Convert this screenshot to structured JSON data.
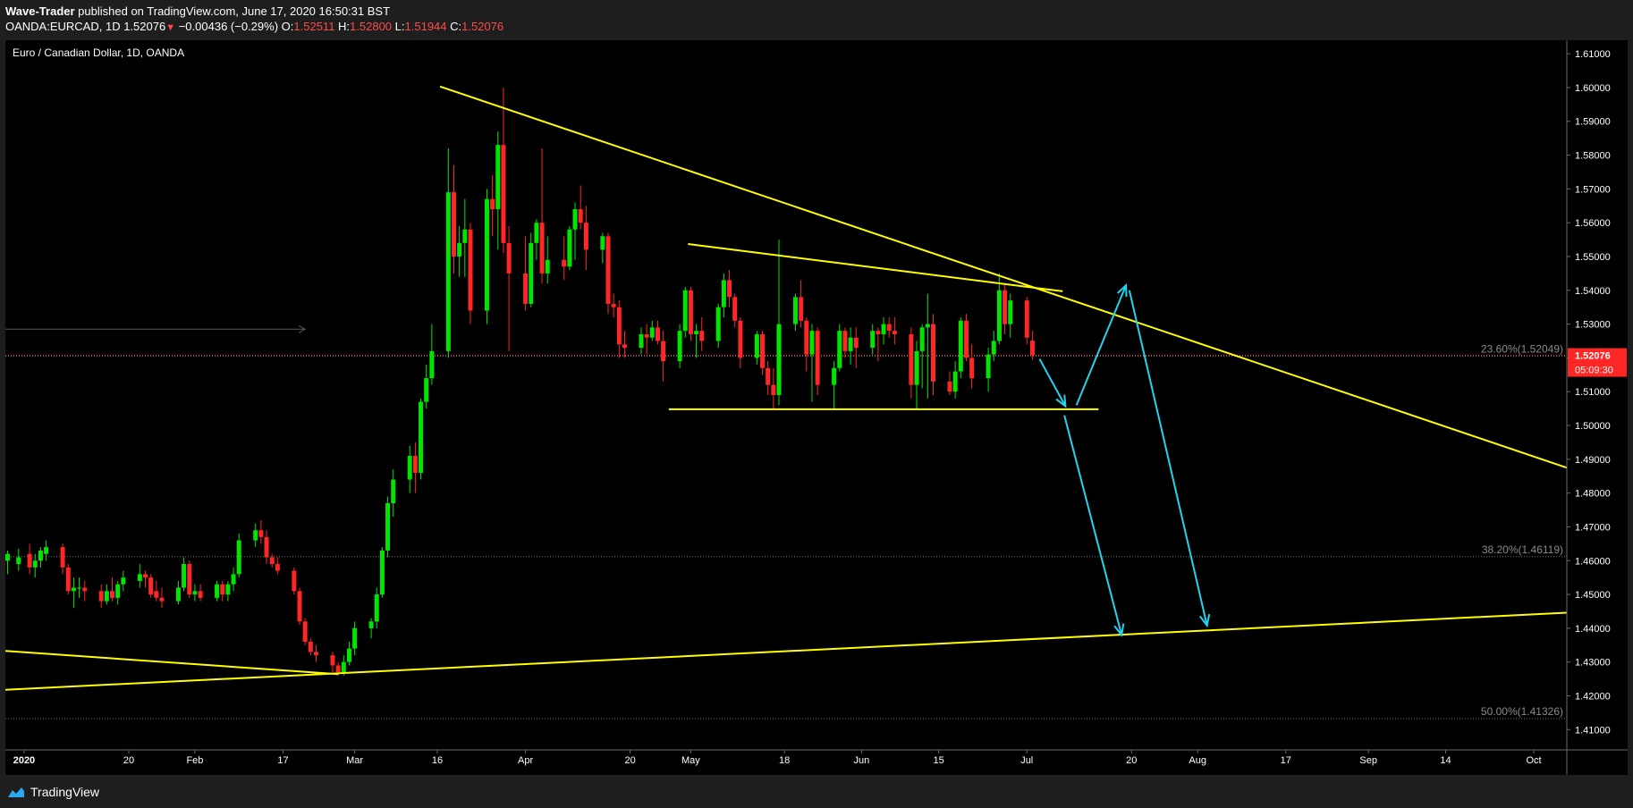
{
  "header": {
    "author": "Wave-Trader",
    "published": " published on TradingView.com, June 17, 2020 16:50:31 BST",
    "symbol": "OANDA:EURCAD, 1D",
    "last": "1.52076",
    "change": "−0.00436 (−0.29%)",
    "o_label": "O:",
    "o_value": "1.52511",
    "h_label": "H:",
    "h_value": "1.52800",
    "l_label": "L:",
    "l_value": "1.51944",
    "c_label": "C:",
    "c_value": "1.52076"
  },
  "chart_title": "Euro / Canadian Dollar, 1D, OANDA",
  "footer": {
    "brand": "TradingView"
  },
  "colors": {
    "up": "#00e600",
    "down": "#ff2626",
    "trend": "#ffff00",
    "projection": "#22d3ee",
    "price_tag": "#ff2626",
    "background": "#000000"
  },
  "chart_data": {
    "type": "candlestick",
    "title": "Euro / Canadian Dollar, 1D, OANDA",
    "y_range": [
      1.404,
      1.614
    ],
    "y_ticks": [
      "1.61000",
      "1.60000",
      "1.59000",
      "1.58000",
      "1.57000",
      "1.56000",
      "1.55000",
      "1.54000",
      "1.53000",
      "1.52000",
      "1.51000",
      "1.50000",
      "1.49000",
      "1.48000",
      "1.47000",
      "1.46000",
      "1.45000",
      "1.44000",
      "1.43000",
      "1.42000",
      "1.41000"
    ],
    "x_ticks": [
      {
        "d": 0,
        "label": "2020"
      },
      {
        "d": 19,
        "label": "20"
      },
      {
        "d": 31,
        "label": "Feb"
      },
      {
        "d": 47,
        "label": "17"
      },
      {
        "d": 60,
        "label": "Mar"
      },
      {
        "d": 75,
        "label": "16"
      },
      {
        "d": 91,
        "label": "Apr"
      },
      {
        "d": 110,
        "label": "20"
      },
      {
        "d": 121,
        "label": "May"
      },
      {
        "d": 138,
        "label": "18"
      },
      {
        "d": 152,
        "label": "Jun"
      },
      {
        "d": 166,
        "label": "15"
      },
      {
        "d": 182,
        "label": "Jul"
      },
      {
        "d": 201,
        "label": "20"
      },
      {
        "d": 213,
        "label": "Aug"
      },
      {
        "d": 229,
        "label": "17"
      },
      {
        "d": 244,
        "label": "Sep"
      },
      {
        "d": 258,
        "label": "14"
      },
      {
        "d": 274,
        "label": "Oct"
      }
    ],
    "x_range": [
      -3.4,
      280
    ],
    "last_price": {
      "value": 1.52076,
      "label": "1.52076",
      "countdown": "05:09:30"
    },
    "fib_levels": [
      {
        "value": 1.52049,
        "label": "23.60%(1.52049)"
      },
      {
        "value": 1.46119,
        "label": "38.20%(1.46119)"
      },
      {
        "value": 1.41326,
        "label": "50.00%(1.41326)"
      }
    ],
    "candles": [
      {
        "d": -3,
        "o": 1.46,
        "h": 1.463,
        "l": 1.456,
        "c": 1.462
      },
      {
        "d": -1,
        "o": 1.459,
        "h": 1.4635,
        "l": 1.457,
        "c": 1.461
      },
      {
        "d": 1,
        "o": 1.462,
        "h": 1.465,
        "l": 1.456,
        "c": 1.458
      },
      {
        "d": 2,
        "o": 1.458,
        "h": 1.462,
        "l": 1.455,
        "c": 1.46
      },
      {
        "d": 3,
        "o": 1.46,
        "h": 1.464,
        "l": 1.458,
        "c": 1.463
      },
      {
        "d": 4,
        "o": 1.462,
        "h": 1.466,
        "l": 1.46,
        "c": 1.464
      },
      {
        "d": 7,
        "o": 1.464,
        "h": 1.465,
        "l": 1.456,
        "c": 1.458
      },
      {
        "d": 8,
        "o": 1.458,
        "h": 1.459,
        "l": 1.45,
        "c": 1.451
      },
      {
        "d": 9,
        "o": 1.451,
        "h": 1.455,
        "l": 1.446,
        "c": 1.452
      },
      {
        "d": 10,
        "o": 1.452,
        "h": 1.455,
        "l": 1.449,
        "c": 1.452
      },
      {
        "d": 11,
        "o": 1.452,
        "h": 1.454,
        "l": 1.448,
        "c": 1.451
      },
      {
        "d": 14,
        "o": 1.451,
        "h": 1.453,
        "l": 1.446,
        "c": 1.448
      },
      {
        "d": 15,
        "o": 1.448,
        "h": 1.453,
        "l": 1.447,
        "c": 1.451
      },
      {
        "d": 16,
        "o": 1.451,
        "h": 1.455,
        "l": 1.448,
        "c": 1.449
      },
      {
        "d": 17,
        "o": 1.449,
        "h": 1.454,
        "l": 1.447,
        "c": 1.453
      },
      {
        "d": 18,
        "o": 1.453,
        "h": 1.457,
        "l": 1.451,
        "c": 1.455
      },
      {
        "d": 21,
        "o": 1.454,
        "h": 1.459,
        "l": 1.452,
        "c": 1.456
      },
      {
        "d": 22,
        "o": 1.456,
        "h": 1.457,
        "l": 1.452,
        "c": 1.455
      },
      {
        "d": 23,
        "o": 1.455,
        "h": 1.456,
        "l": 1.449,
        "c": 1.45
      },
      {
        "d": 24,
        "o": 1.451,
        "h": 1.454,
        "l": 1.448,
        "c": 1.449
      },
      {
        "d": 25,
        "o": 1.449,
        "h": 1.452,
        "l": 1.446,
        "c": 1.448
      },
      {
        "d": 28,
        "o": 1.448,
        "h": 1.454,
        "l": 1.447,
        "c": 1.452
      },
      {
        "d": 29,
        "o": 1.452,
        "h": 1.461,
        "l": 1.451,
        "c": 1.459
      },
      {
        "d": 30,
        "o": 1.459,
        "h": 1.46,
        "l": 1.449,
        "c": 1.45
      },
      {
        "d": 31,
        "o": 1.45,
        "h": 1.453,
        "l": 1.448,
        "c": 1.451
      },
      {
        "d": 32,
        "o": 1.451,
        "h": 1.453,
        "l": 1.448,
        "c": 1.449
      },
      {
        "d": 35,
        "o": 1.449,
        "h": 1.454,
        "l": 1.448,
        "c": 1.453
      },
      {
        "d": 36,
        "o": 1.453,
        "h": 1.454,
        "l": 1.448,
        "c": 1.45
      },
      {
        "d": 37,
        "o": 1.45,
        "h": 1.454,
        "l": 1.448,
        "c": 1.453
      },
      {
        "d": 38,
        "o": 1.453,
        "h": 1.458,
        "l": 1.451,
        "c": 1.456
      },
      {
        "d": 39,
        "o": 1.456,
        "h": 1.468,
        "l": 1.455,
        "c": 1.466
      },
      {
        "d": 42,
        "o": 1.466,
        "h": 1.471,
        "l": 1.464,
        "c": 1.469
      },
      {
        "d": 43,
        "o": 1.469,
        "h": 1.472,
        "l": 1.465,
        "c": 1.467
      },
      {
        "d": 44,
        "o": 1.467,
        "h": 1.469,
        "l": 1.459,
        "c": 1.461
      },
      {
        "d": 45,
        "o": 1.461,
        "h": 1.462,
        "l": 1.458,
        "c": 1.459
      },
      {
        "d": 46,
        "o": 1.459,
        "h": 1.461,
        "l": 1.456,
        "c": 1.457
      },
      {
        "d": 49,
        "o": 1.457,
        "h": 1.458,
        "l": 1.45,
        "c": 1.451
      },
      {
        "d": 50,
        "o": 1.451,
        "h": 1.452,
        "l": 1.441,
        "c": 1.442
      },
      {
        "d": 51,
        "o": 1.442,
        "h": 1.443,
        "l": 1.435,
        "c": 1.436
      },
      {
        "d": 52,
        "o": 1.436,
        "h": 1.437,
        "l": 1.432,
        "c": 1.433
      },
      {
        "d": 53,
        "o": 1.433,
        "h": 1.435,
        "l": 1.43,
        "c": 1.432
      },
      {
        "d": 56,
        "o": 1.432,
        "h": 1.433,
        "l": 1.427,
        "c": 1.429
      },
      {
        "d": 57,
        "o": 1.429,
        "h": 1.43,
        "l": 1.426,
        "c": 1.427
      },
      {
        "d": 58,
        "o": 1.427,
        "h": 1.432,
        "l": 1.426,
        "c": 1.43
      },
      {
        "d": 59,
        "o": 1.43,
        "h": 1.436,
        "l": 1.429,
        "c": 1.434
      },
      {
        "d": 60,
        "o": 1.434,
        "h": 1.442,
        "l": 1.432,
        "c": 1.44
      },
      {
        "d": 63,
        "o": 1.44,
        "h": 1.443,
        "l": 1.437,
        "c": 1.442
      },
      {
        "d": 64,
        "o": 1.442,
        "h": 1.452,
        "l": 1.44,
        "c": 1.45
      },
      {
        "d": 65,
        "o": 1.45,
        "h": 1.464,
        "l": 1.449,
        "c": 1.463
      },
      {
        "d": 66,
        "o": 1.463,
        "h": 1.479,
        "l": 1.461,
        "c": 1.477
      },
      {
        "d": 67,
        "o": 1.477,
        "h": 1.487,
        "l": 1.473,
        "c": 1.484
      },
      {
        "d": 70,
        "o": 1.484,
        "h": 1.494,
        "l": 1.48,
        "c": 1.491
      },
      {
        "d": 71,
        "o": 1.491,
        "h": 1.495,
        "l": 1.48,
        "c": 1.486
      },
      {
        "d": 72,
        "o": 1.486,
        "h": 1.508,
        "l": 1.484,
        "c": 1.507
      },
      {
        "d": 73,
        "o": 1.507,
        "h": 1.518,
        "l": 1.505,
        "c": 1.514
      },
      {
        "d": 74,
        "o": 1.514,
        "h": 1.53,
        "l": 1.512,
        "c": 1.522
      },
      {
        "d": 77,
        "o": 1.522,
        "h": 1.582,
        "l": 1.52,
        "c": 1.569
      },
      {
        "d": 78,
        "o": 1.569,
        "h": 1.577,
        "l": 1.545,
        "c": 1.55
      },
      {
        "d": 79,
        "o": 1.55,
        "h": 1.559,
        "l": 1.544,
        "c": 1.554
      },
      {
        "d": 80,
        "o": 1.554,
        "h": 1.567,
        "l": 1.544,
        "c": 1.558
      },
      {
        "d": 81,
        "o": 1.558,
        "h": 1.56,
        "l": 1.53,
        "c": 1.534
      },
      {
        "d": 84,
        "o": 1.534,
        "h": 1.57,
        "l": 1.53,
        "c": 1.567
      },
      {
        "d": 85,
        "o": 1.567,
        "h": 1.574,
        "l": 1.556,
        "c": 1.564
      },
      {
        "d": 86,
        "o": 1.564,
        "h": 1.587,
        "l": 1.552,
        "c": 1.583
      },
      {
        "d": 87,
        "o": 1.583,
        "h": 1.6,
        "l": 1.551,
        "c": 1.554
      },
      {
        "d": 88,
        "o": 1.554,
        "h": 1.559,
        "l": 1.522,
        "c": 1.545
      },
      {
        "d": 91,
        "o": 1.545,
        "h": 1.556,
        "l": 1.534,
        "c": 1.536
      },
      {
        "d": 92,
        "o": 1.536,
        "h": 1.557,
        "l": 1.535,
        "c": 1.554
      },
      {
        "d": 93,
        "o": 1.554,
        "h": 1.561,
        "l": 1.549,
        "c": 1.56
      },
      {
        "d": 94,
        "o": 1.56,
        "h": 1.582,
        "l": 1.542,
        "c": 1.545
      },
      {
        "d": 95,
        "o": 1.545,
        "h": 1.556,
        "l": 1.542,
        "c": 1.549
      },
      {
        "d": 98,
        "o": 1.549,
        "h": 1.556,
        "l": 1.543,
        "c": 1.547
      },
      {
        "d": 99,
        "o": 1.547,
        "h": 1.559,
        "l": 1.546,
        "c": 1.558
      },
      {
        "d": 100,
        "o": 1.558,
        "h": 1.566,
        "l": 1.549,
        "c": 1.564
      },
      {
        "d": 101,
        "o": 1.564,
        "h": 1.571,
        "l": 1.558,
        "c": 1.56
      },
      {
        "d": 102,
        "o": 1.56,
        "h": 1.565,
        "l": 1.546,
        "c": 1.552
      },
      {
        "d": 105,
        "o": 1.552,
        "h": 1.557,
        "l": 1.548,
        "c": 1.556
      },
      {
        "d": 106,
        "o": 1.556,
        "h": 1.557,
        "l": 1.533,
        "c": 1.536
      },
      {
        "d": 107,
        "o": 1.536,
        "h": 1.539,
        "l": 1.532,
        "c": 1.535
      },
      {
        "d": 108,
        "o": 1.535,
        "h": 1.537,
        "l": 1.52,
        "c": 1.524
      },
      {
        "d": 109,
        "o": 1.524,
        "h": 1.528,
        "l": 1.52,
        "c": 1.523
      },
      {
        "d": 112,
        "o": 1.523,
        "h": 1.529,
        "l": 1.521,
        "c": 1.527
      },
      {
        "d": 113,
        "o": 1.527,
        "h": 1.53,
        "l": 1.521,
        "c": 1.526
      },
      {
        "d": 114,
        "o": 1.526,
        "h": 1.531,
        "l": 1.525,
        "c": 1.529
      },
      {
        "d": 115,
        "o": 1.529,
        "h": 1.531,
        "l": 1.524,
        "c": 1.525
      },
      {
        "d": 116,
        "o": 1.525,
        "h": 1.528,
        "l": 1.513,
        "c": 1.519
      },
      {
        "d": 119,
        "o": 1.519,
        "h": 1.53,
        "l": 1.517,
        "c": 1.528
      },
      {
        "d": 120,
        "o": 1.528,
        "h": 1.541,
        "l": 1.526,
        "c": 1.54
      },
      {
        "d": 121,
        "o": 1.54,
        "h": 1.541,
        "l": 1.525,
        "c": 1.527
      },
      {
        "d": 122,
        "o": 1.527,
        "h": 1.53,
        "l": 1.52,
        "c": 1.528
      },
      {
        "d": 123,
        "o": 1.528,
        "h": 1.532,
        "l": 1.522,
        "c": 1.525
      },
      {
        "d": 126,
        "o": 1.525,
        "h": 1.536,
        "l": 1.523,
        "c": 1.535
      },
      {
        "d": 127,
        "o": 1.535,
        "h": 1.545,
        "l": 1.532,
        "c": 1.543
      },
      {
        "d": 128,
        "o": 1.543,
        "h": 1.546,
        "l": 1.535,
        "c": 1.538
      },
      {
        "d": 129,
        "o": 1.538,
        "h": 1.539,
        "l": 1.529,
        "c": 1.531
      },
      {
        "d": 130,
        "o": 1.531,
        "h": 1.532,
        "l": 1.517,
        "c": 1.52
      },
      {
        "d": 133,
        "o": 1.52,
        "h": 1.528,
        "l": 1.518,
        "c": 1.527
      },
      {
        "d": 134,
        "o": 1.527,
        "h": 1.528,
        "l": 1.515,
        "c": 1.517
      },
      {
        "d": 135,
        "o": 1.517,
        "h": 1.519,
        "l": 1.509,
        "c": 1.512
      },
      {
        "d": 136,
        "o": 1.512,
        "h": 1.517,
        "l": 1.505,
        "c": 1.509
      },
      {
        "d": 137,
        "o": 1.509,
        "h": 1.555,
        "l": 1.506,
        "c": 1.53
      },
      {
        "d": 140,
        "o": 1.53,
        "h": 1.539,
        "l": 1.528,
        "c": 1.538
      },
      {
        "d": 141,
        "o": 1.538,
        "h": 1.543,
        "l": 1.529,
        "c": 1.531
      },
      {
        "d": 142,
        "o": 1.531,
        "h": 1.532,
        "l": 1.516,
        "c": 1.521
      },
      {
        "d": 143,
        "o": 1.521,
        "h": 1.53,
        "l": 1.507,
        "c": 1.528
      },
      {
        "d": 144,
        "o": 1.528,
        "h": 1.529,
        "l": 1.509,
        "c": 1.512
      },
      {
        "d": 147,
        "o": 1.512,
        "h": 1.519,
        "l": 1.505,
        "c": 1.517
      },
      {
        "d": 148,
        "o": 1.517,
        "h": 1.53,
        "l": 1.516,
        "c": 1.528
      },
      {
        "d": 149,
        "o": 1.528,
        "h": 1.529,
        "l": 1.52,
        "c": 1.522
      },
      {
        "d": 150,
        "o": 1.522,
        "h": 1.529,
        "l": 1.518,
        "c": 1.526
      },
      {
        "d": 151,
        "o": 1.526,
        "h": 1.529,
        "l": 1.517,
        "c": 1.523
      },
      {
        "d": 154,
        "o": 1.523,
        "h": 1.53,
        "l": 1.521,
        "c": 1.528
      },
      {
        "d": 155,
        "o": 1.528,
        "h": 1.529,
        "l": 1.519,
        "c": 1.527
      },
      {
        "d": 156,
        "o": 1.527,
        "h": 1.532,
        "l": 1.524,
        "c": 1.53
      },
      {
        "d": 157,
        "o": 1.53,
        "h": 1.532,
        "l": 1.526,
        "c": 1.528
      },
      {
        "d": 158,
        "o": 1.528,
        "h": 1.532,
        "l": 1.524,
        "c": 1.527
      },
      {
        "d": 161,
        "o": 1.527,
        "h": 1.529,
        "l": 1.508,
        "c": 1.512
      },
      {
        "d": 162,
        "o": 1.512,
        "h": 1.525,
        "l": 1.505,
        "c": 1.522
      },
      {
        "d": 163,
        "o": 1.522,
        "h": 1.53,
        "l": 1.511,
        "c": 1.529
      },
      {
        "d": 164,
        "o": 1.529,
        "h": 1.539,
        "l": 1.508,
        "c": 1.53
      },
      {
        "d": 165,
        "o": 1.53,
        "h": 1.533,
        "l": 1.509,
        "c": 1.513
      },
      {
        "d": 168,
        "o": 1.513,
        "h": 1.516,
        "l": 1.509,
        "c": 1.51
      },
      {
        "d": 169,
        "o": 1.51,
        "h": 1.519,
        "l": 1.508,
        "c": 1.516
      },
      {
        "d": 170,
        "o": 1.516,
        "h": 1.532,
        "l": 1.514,
        "c": 1.531
      },
      {
        "d": 171,
        "o": 1.531,
        "h": 1.533,
        "l": 1.519,
        "c": 1.52
      },
      {
        "d": 172,
        "o": 1.52,
        "h": 1.524,
        "l": 1.511,
        "c": 1.514
      },
      {
        "d": 175,
        "o": 1.514,
        "h": 1.523,
        "l": 1.51,
        "c": 1.521
      },
      {
        "d": 176,
        "o": 1.521,
        "h": 1.528,
        "l": 1.519,
        "c": 1.525
      },
      {
        "d": 177,
        "o": 1.525,
        "h": 1.545,
        "l": 1.524,
        "c": 1.54
      },
      {
        "d": 178,
        "o": 1.54,
        "h": 1.542,
        "l": 1.527,
        "c": 1.53
      },
      {
        "d": 179,
        "o": 1.53,
        "h": 1.539,
        "l": 1.526,
        "c": 1.537
      },
      {
        "d": 182,
        "o": 1.537,
        "h": 1.538,
        "l": 1.524,
        "c": 1.526
      },
      {
        "d": 183,
        "o": 1.5251,
        "h": 1.528,
        "l": 1.5194,
        "c": 1.5208
      }
    ],
    "trendlines": [
      {
        "name": "upper-descending-trendline",
        "points": [
          [
            75.5,
            1.6003
          ],
          [
            280,
            1.4875
          ]
        ]
      },
      {
        "name": "lower-ascending-trendline",
        "points": [
          [
            -3.4,
            1.4218
          ],
          [
            280,
            1.4446
          ]
        ]
      },
      {
        "name": "early-descending-trendline",
        "points": [
          [
            -3.4,
            1.4333
          ],
          [
            57,
            1.4264
          ]
        ]
      },
      {
        "name": "consolidation-top-line",
        "points": [
          [
            120.5,
            1.5537
          ],
          [
            188.5,
            1.5397
          ]
        ]
      },
      {
        "name": "consolidation-support-line",
        "points": [
          [
            117,
            1.5048
          ],
          [
            195,
            1.5048
          ]
        ]
      }
    ],
    "projections": [
      {
        "name": "drop-to-support-arrow",
        "points": [
          [
            184.3,
            1.5197
          ],
          [
            189,
            1.5057
          ]
        ]
      },
      {
        "name": "rally-to-apex-arrow",
        "points": [
          [
            191,
            1.506
          ],
          [
            200,
            1.5415
          ]
        ]
      },
      {
        "name": "breakdown-arrow",
        "points": [
          [
            188.8,
            1.503
          ],
          [
            199.2,
            1.438
          ]
        ]
      },
      {
        "name": "apex-fall-arrow",
        "points": [
          [
            200.6,
            1.54
          ],
          [
            214.7,
            1.4408
          ]
        ]
      }
    ],
    "reference_arrow": {
      "points": [
        [
          -3.4,
          1.5285
        ],
        [
          51,
          1.5285
        ]
      ]
    }
  }
}
